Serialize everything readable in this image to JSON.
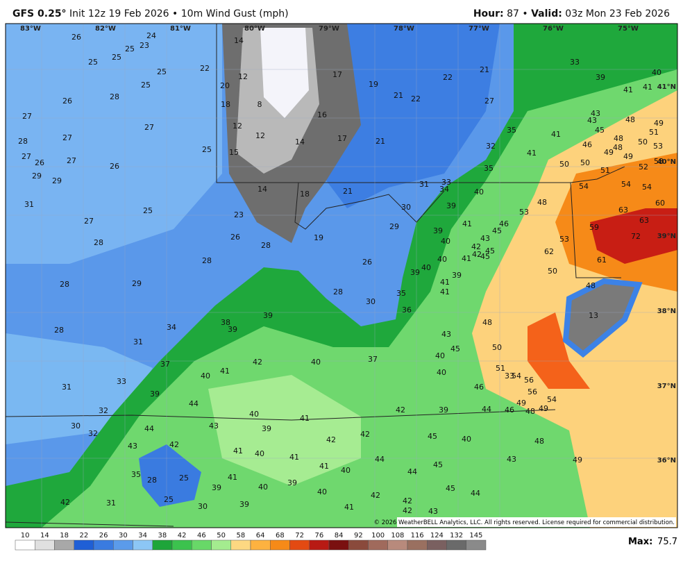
{
  "header": {
    "model": "GFS 0.25°",
    "subtitle": "Init 12z 19 Feb 2026 • 10m Wind Gust (mph)",
    "hour_label": "Hour:",
    "hour": "87",
    "separator": "•",
    "valid_label": "Valid:",
    "valid": "03z Mon 23 Feb 2026"
  },
  "map": {
    "lon_labels": [
      "83°W",
      "82°W",
      "81°W",
      "80°W",
      "79°W",
      "78°W",
      "77°W",
      "76°W",
      "75°W"
    ],
    "lat_labels": [
      "41°N",
      "40°N",
      "39°N",
      "38°N",
      "37°N",
      "36°N"
    ],
    "wind_labels": [
      26,
      24,
      25,
      23,
      25,
      25,
      25,
      22,
      14,
      12,
      20,
      18,
      8,
      12,
      12,
      15,
      14,
      17,
      19,
      16,
      17,
      21,
      22,
      21,
      21,
      22,
      27,
      33,
      39,
      40,
      41,
      41,
      25,
      26,
      28,
      27,
      27,
      28,
      27,
      27,
      26,
      27,
      26,
      25,
      29,
      29,
      31,
      25,
      27,
      28,
      23,
      26,
      28,
      19,
      14,
      18,
      21,
      31,
      33,
      34,
      40,
      30,
      29,
      39,
      41,
      45,
      46,
      53,
      48,
      35,
      41,
      32,
      41,
      35,
      50,
      50,
      46,
      43,
      43,
      45,
      48,
      49,
      48,
      48,
      51,
      50,
      51,
      49,
      53,
      49,
      52,
      58,
      54,
      54,
      54,
      63,
      60,
      63,
      59,
      72,
      53,
      62,
      50,
      61,
      48,
      28,
      29,
      28,
      28,
      31,
      34,
      38,
      39,
      39,
      28,
      30,
      26,
      35,
      36,
      39,
      40,
      40,
      41,
      39,
      41,
      41,
      40,
      39,
      42,
      43,
      45,
      45,
      42,
      37,
      33,
      31,
      39,
      40,
      41,
      42,
      40,
      37,
      43,
      45,
      40,
      40,
      48,
      50,
      51,
      54,
      33,
      56,
      56,
      54,
      46,
      49,
      48,
      49,
      46,
      44,
      39,
      42,
      32,
      30,
      32,
      44,
      44,
      43,
      40,
      39,
      41,
      42,
      42,
      45,
      40,
      48,
      43,
      42,
      41,
      40,
      41,
      41,
      40,
      44,
      44,
      45,
      43,
      49,
      35,
      28,
      25,
      41,
      40,
      39,
      39,
      40,
      42,
      45,
      44,
      25,
      30,
      39,
      41,
      42,
      42,
      43,
      42,
      31,
      13
    ],
    "copyright": "© 2026 WeatherBELL Analytics, LLC. All rights reserved. License required for commercial distribution."
  },
  "colorbar": {
    "labels": [
      "10",
      "14",
      "18",
      "22",
      "26",
      "30",
      "34",
      "38",
      "42",
      "46",
      "50",
      "58",
      "64",
      "68",
      "72",
      "76",
      "84",
      "92",
      "100",
      "108",
      "116",
      "124",
      "132",
      "145"
    ],
    "colors": [
      "#ffffff",
      "#e0e0e0",
      "#a8a8a8",
      "#1f5fd6",
      "#3a7be0",
      "#5b9bea",
      "#8cc6f5",
      "#1ea53a",
      "#3cc24e",
      "#68d868",
      "#a4ec8f",
      "#fdd882",
      "#fdb240",
      "#f68a18",
      "#e34a12",
      "#b81a14",
      "#7a1010",
      "#8a4a3c",
      "#a06a5c",
      "#b88a7c",
      "#9a7060",
      "#7a6060",
      "#6a6a6a",
      "#8a8a8a"
    ],
    "max_label": "Max:",
    "max_value": "75.7"
  }
}
